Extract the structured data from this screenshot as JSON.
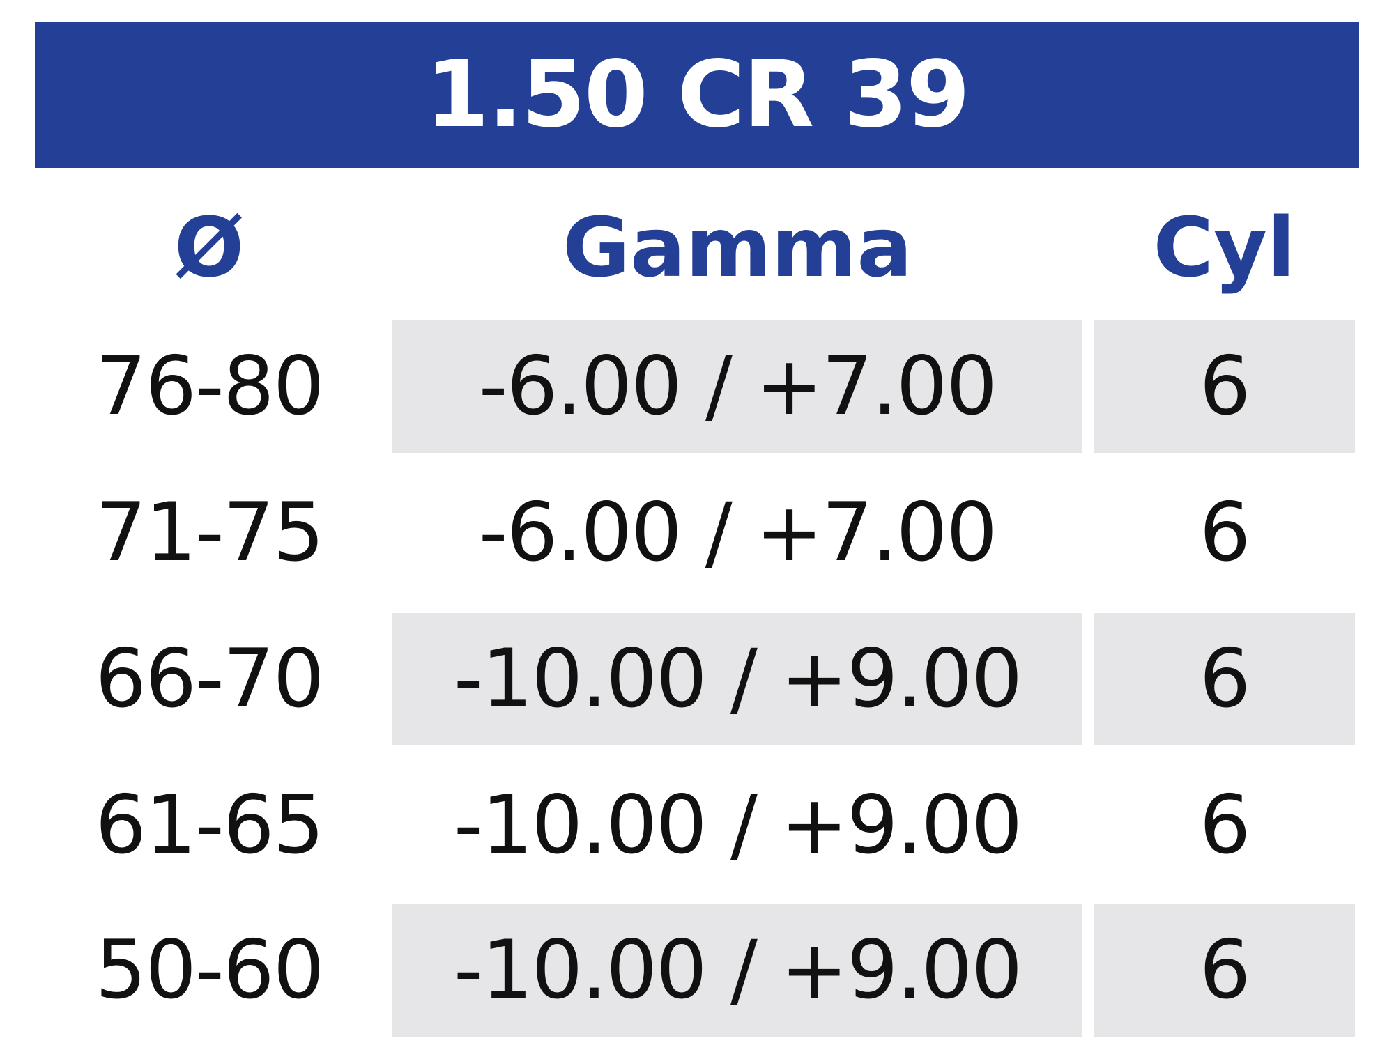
{
  "title": "1.50 CR 39",
  "headers": {
    "diameter": "Ø",
    "range": "Gamma",
    "cyl": "Cyl"
  },
  "rows": [
    {
      "diameter": "76-80",
      "range": "-6.00 / +7.00",
      "cyl": "6"
    },
    {
      "diameter": "71-75",
      "range": "-6.00 / +7.00",
      "cyl": "6"
    },
    {
      "diameter": "66-70",
      "range": "-10.00 / +9.00",
      "cyl": "6"
    },
    {
      "diameter": "61-65",
      "range": "-10.00 / +9.00",
      "cyl": "6"
    },
    {
      "diameter": "50-60",
      "range": "-10.00 / +9.00",
      "cyl": "6"
    }
  ],
  "colors": {
    "accent": "#233f96",
    "shade": "#e6e6e8",
    "text": "#111111"
  }
}
